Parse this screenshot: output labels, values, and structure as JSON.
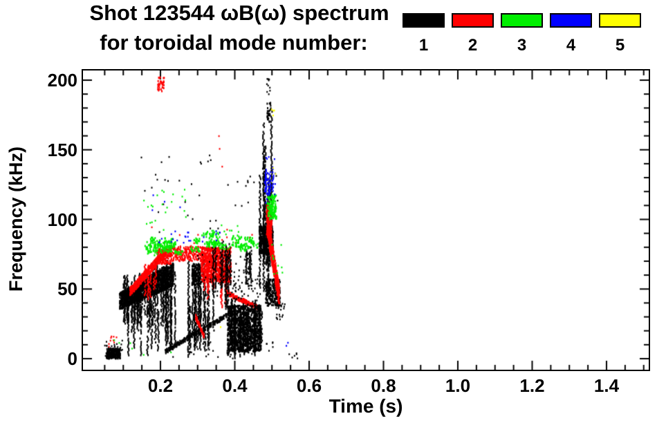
{
  "title": {
    "line1": "Shot 123544 ωB(ω) spectrum",
    "line2": "for toroidal mode number:"
  },
  "legend": {
    "modes": [
      {
        "mode": 1,
        "label": "1",
        "color": "#000000"
      },
      {
        "mode": 2,
        "label": "2",
        "color": "#ff0000"
      },
      {
        "mode": 3,
        "label": "3",
        "color": "#00ee00"
      },
      {
        "mode": 4,
        "label": "4",
        "color": "#0000ff"
      },
      {
        "mode": 5,
        "label": "5",
        "color": "#ffff00"
      }
    ]
  },
  "axes": {
    "x": {
      "label": "Time (s)",
      "major_ticks": [
        {
          "v": 0.2,
          "label": "0.2"
        },
        {
          "v": 0.4,
          "label": "0.4"
        },
        {
          "v": 0.6,
          "label": "0.6"
        },
        {
          "v": 0.8,
          "label": "0.8"
        },
        {
          "v": 1.0,
          "label": "1.0"
        },
        {
          "v": 1.2,
          "label": "1.2"
        },
        {
          "v": 1.4,
          "label": "1.4"
        }
      ],
      "minor_step": 0.05
    },
    "y": {
      "label": "Frequency (kHz)",
      "major_ticks": [
        {
          "v": 0,
          "label": "0"
        },
        {
          "v": 50,
          "label": "50"
        },
        {
          "v": 100,
          "label": "100"
        },
        {
          "v": 150,
          "label": "150"
        },
        {
          "v": 200,
          "label": "200"
        }
      ],
      "minor_step": 10
    }
  },
  "chart_data": {
    "type": "scatter",
    "title": "Shot 123544 ωB(ω) spectrum for toroidal mode number 1-5",
    "xlabel": "Time (s)",
    "ylabel": "Frequency (kHz)",
    "xlim": [
      0,
      1.5
    ],
    "ylim": [
      0,
      200
    ],
    "legend_position": "top-right",
    "grid": false,
    "series": [
      {
        "name": "n=1",
        "color": "#000000"
      },
      {
        "name": "n=2",
        "color": "#ff0000"
      },
      {
        "name": "n=3",
        "color": "#00ee00"
      },
      {
        "name": "n=4",
        "color": "#0000ff"
      },
      {
        "name": "n=5",
        "color": "#ffff00"
      }
    ],
    "clusters": [
      {
        "mode": 1,
        "kind": "blob",
        "t": [
          0.055,
          0.092
        ],
        "f": [
          0,
          7
        ],
        "n": 260
      },
      {
        "mode": 1,
        "kind": "dots",
        "t": [
          0.05,
          0.098
        ],
        "f": [
          0,
          13
        ],
        "n": 30
      },
      {
        "mode": 2,
        "kind": "dots",
        "t": [
          0.06,
          0.085
        ],
        "f": [
          8,
          16
        ],
        "n": 9
      },
      {
        "mode": 3,
        "kind": "dots",
        "t": [
          0.07,
          0.09
        ],
        "f": [
          10,
          15
        ],
        "n": 2
      },
      {
        "mode": 1,
        "kind": "band",
        "t": [
          0.09,
          0.235
        ],
        "f_lo": [
          35,
          52
        ],
        "f_hi": [
          47,
          70
        ],
        "n": 1400
      },
      {
        "mode": 1,
        "kind": "vstreaks",
        "t": [
          0.1,
          0.175
        ],
        "count": 22,
        "f_top": [
          48,
          62
        ],
        "f_bot": [
          15,
          35
        ]
      },
      {
        "mode": 1,
        "kind": "vstreaks",
        "t": [
          0.175,
          0.345
        ],
        "count": 26,
        "f_top": [
          58,
          72
        ],
        "f_bot": [
          5,
          28
        ]
      },
      {
        "mode": 1,
        "kind": "vstreaks",
        "t": [
          0.095,
          0.33
        ],
        "count": 10,
        "f_top": [
          35,
          50
        ],
        "f_bot": [
          0,
          8
        ]
      },
      {
        "mode": 1,
        "kind": "blob",
        "t": [
          0.285,
          0.307
        ],
        "f": [
          53,
          68
        ],
        "n": 110
      },
      {
        "mode": 2,
        "kind": "line",
        "from": [
          0.118,
          48
        ],
        "to": [
          0.215,
          77
        ],
        "n": 400,
        "jitter": 3
      },
      {
        "mode": 2,
        "kind": "vstreaks",
        "t": [
          0.13,
          0.19
        ],
        "count": 6,
        "f_top": [
          55,
          68
        ],
        "f_bot": [
          42,
          55
        ]
      },
      {
        "mode": 2,
        "kind": "blob",
        "t": [
          0.19,
          0.23
        ],
        "f": [
          68,
          79
        ],
        "n": 160
      },
      {
        "mode": 2,
        "kind": "blob",
        "t": [
          0.225,
          0.315
        ],
        "f": [
          70,
          81
        ],
        "n": 230
      },
      {
        "mode": 2,
        "kind": "blob",
        "t": [
          0.31,
          0.39
        ],
        "f": [
          55,
          80
        ],
        "n": 850
      },
      {
        "mode": 2,
        "kind": "vstreaks",
        "t": [
          0.315,
          0.385
        ],
        "count": 10,
        "f_top": [
          60,
          72
        ],
        "f_bot": [
          35,
          52
        ]
      },
      {
        "mode": 2,
        "kind": "line",
        "from": [
          0.378,
          47
        ],
        "to": [
          0.468,
          36
        ],
        "n": 170,
        "jitter": 1.5
      },
      {
        "mode": 2,
        "kind": "line",
        "from": [
          0.295,
          30
        ],
        "to": [
          0.317,
          16
        ],
        "n": 70,
        "jitter": 1.5
      },
      {
        "mode": 2,
        "kind": "blob",
        "t": [
          0.193,
          0.21
        ],
        "f": [
          192,
          202
        ],
        "n": 35
      },
      {
        "mode": 2,
        "kind": "dots",
        "t": [
          0.355,
          0.375
        ],
        "f": [
          130,
          160
        ],
        "n": 3
      },
      {
        "mode": 2,
        "kind": "dots",
        "t": [
          0.15,
          0.45
        ],
        "f": [
          82,
          95
        ],
        "n": 10
      },
      {
        "mode": 1,
        "kind": "line",
        "from": [
          0.213,
          5
        ],
        "to": [
          0.305,
          20
        ],
        "n": 170,
        "jitter": 1.5
      },
      {
        "mode": 1,
        "kind": "line",
        "from": [
          0.315,
          21
        ],
        "to": [
          0.378,
          31
        ],
        "n": 110,
        "jitter": 1.5
      },
      {
        "mode": 1,
        "kind": "blob",
        "t": [
          0.38,
          0.47
        ],
        "f": [
          5,
          38
        ],
        "n": 1150
      },
      {
        "mode": 1,
        "kind": "vstreaks",
        "t": [
          0.38,
          0.475
        ],
        "count": 18,
        "f_top": [
          30,
          44
        ],
        "f_bot": [
          0,
          8
        ]
      },
      {
        "mode": 1,
        "kind": "vstreaks",
        "t": [
          0.33,
          0.39
        ],
        "count": 8,
        "f_top": [
          72,
          86
        ],
        "f_bot": [
          35,
          55
        ]
      },
      {
        "mode": 1,
        "kind": "vstreaks",
        "t": [
          0.43,
          0.452
        ],
        "count": 5,
        "f_top": [
          74,
          88
        ],
        "f_bot": [
          52,
          62
        ]
      },
      {
        "mode": 1,
        "kind": "dots",
        "t": [
          0.39,
          0.47
        ],
        "f": [
          38,
          60
        ],
        "n": 50
      },
      {
        "mode": 1,
        "kind": "vstreaks",
        "t": [
          0.466,
          0.502
        ],
        "count": 12,
        "f_top": [
          95,
          185
        ],
        "f_bot": [
          48,
          80
        ]
      },
      {
        "mode": 1,
        "kind": "blob",
        "t": [
          0.466,
          0.503
        ],
        "f": [
          75,
          95
        ],
        "n": 380
      },
      {
        "mode": 1,
        "kind": "blob",
        "t": [
          0.487,
          0.497
        ],
        "f": [
          170,
          184
        ],
        "n": 30
      },
      {
        "mode": 1,
        "kind": "dots",
        "t": [
          0.483,
          0.495
        ],
        "f": [
          188,
          201
        ],
        "n": 10
      },
      {
        "mode": 1,
        "kind": "blob",
        "t": [
          0.483,
          0.522
        ],
        "f": [
          38,
          57
        ],
        "n": 280
      },
      {
        "mode": 1,
        "kind": "dots",
        "t": [
          0.51,
          0.535
        ],
        "f": [
          28,
          45
        ],
        "n": 20
      },
      {
        "mode": 1,
        "kind": "dots",
        "t": [
          0.38,
          0.395
        ],
        "f": [
          0,
          8
        ],
        "n": 12
      },
      {
        "mode": 1,
        "kind": "dots",
        "t": [
          0.54,
          0.57
        ],
        "f": [
          0,
          4
        ],
        "n": 6
      },
      {
        "mode": 1,
        "kind": "dots",
        "t": [
          0.14,
          0.52
        ],
        "f": [
          90,
          150
        ],
        "n": 45
      },
      {
        "mode": 1,
        "kind": "dots",
        "t": [
          0.2,
          0.53
        ],
        "f": [
          1,
          12
        ],
        "n": 35
      },
      {
        "mode": 1,
        "kind": "dots",
        "t": [
          0.3,
          0.45
        ],
        "f": [
          45,
          75
        ],
        "n": 60
      },
      {
        "mode": 2,
        "kind": "blob",
        "t": [
          0.485,
          0.5
        ],
        "f": [
          88,
          110
        ],
        "n": 160
      },
      {
        "mode": 2,
        "kind": "line",
        "from": [
          0.488,
          95
        ],
        "to": [
          0.52,
          45
        ],
        "n": 480,
        "jitter": 8
      },
      {
        "mode": 3,
        "kind": "patches",
        "t": [
          0.165,
          0.3
        ],
        "f": [
          76,
          86
        ],
        "count": 14
      },
      {
        "mode": 3,
        "kind": "patches",
        "t": [
          0.33,
          0.39
        ],
        "f": [
          80,
          90
        ],
        "count": 7
      },
      {
        "mode": 3,
        "kind": "patches",
        "t": [
          0.398,
          0.45
        ],
        "f": [
          78,
          88
        ],
        "count": 6
      },
      {
        "mode": 3,
        "kind": "dots",
        "t": [
          0.15,
          0.27
        ],
        "f": [
          92,
          122
        ],
        "n": 22
      },
      {
        "mode": 3,
        "kind": "dots",
        "t": [
          0.3,
          0.42
        ],
        "f": [
          88,
          96
        ],
        "n": 10
      },
      {
        "mode": 3,
        "kind": "blob",
        "t": [
          0.488,
          0.512
        ],
        "f": [
          100,
          118
        ],
        "n": 130
      },
      {
        "mode": 3,
        "kind": "dots",
        "t": [
          0.5,
          0.53
        ],
        "f": [
          60,
          82
        ],
        "n": 10
      },
      {
        "mode": 3,
        "kind": "dots",
        "t": [
          0.07,
          0.45
        ],
        "f": [
          2,
          15
        ],
        "n": 4
      },
      {
        "mode": 4,
        "kind": "dots",
        "t": [
          0.195,
          0.285
        ],
        "f": [
          83,
          92
        ],
        "n": 16
      },
      {
        "mode": 4,
        "kind": "dots",
        "t": [
          0.3,
          0.4
        ],
        "f": [
          84,
          94
        ],
        "n": 6
      },
      {
        "mode": 4,
        "kind": "dots",
        "t": [
          0.17,
          0.26
        ],
        "f": [
          95,
          120
        ],
        "n": 4
      },
      {
        "mode": 4,
        "kind": "vstreaks",
        "t": [
          0.482,
          0.503
        ],
        "count": 5,
        "f_top": [
          128,
          142
        ],
        "f_bot": [
          112,
          124
        ]
      },
      {
        "mode": 4,
        "kind": "dots",
        "t": [
          0.48,
          0.51
        ],
        "f": [
          110,
          145
        ],
        "n": 14
      },
      {
        "mode": 4,
        "kind": "dots",
        "t": [
          0.52,
          0.545
        ],
        "f": [
          5,
          14
        ],
        "n": 2
      },
      {
        "mode": 5,
        "kind": "dots",
        "t": [
          0.497,
          0.508
        ],
        "f": [
          172,
          182
        ],
        "n": 4
      },
      {
        "mode": 5,
        "kind": "dots",
        "t": [
          0.502,
          0.512
        ],
        "f": [
          130,
          137
        ],
        "n": 2
      },
      {
        "mode": 5,
        "kind": "dots",
        "t": [
          0.355,
          0.362
        ],
        "f": [
          20,
          25
        ],
        "n": 1
      }
    ]
  }
}
